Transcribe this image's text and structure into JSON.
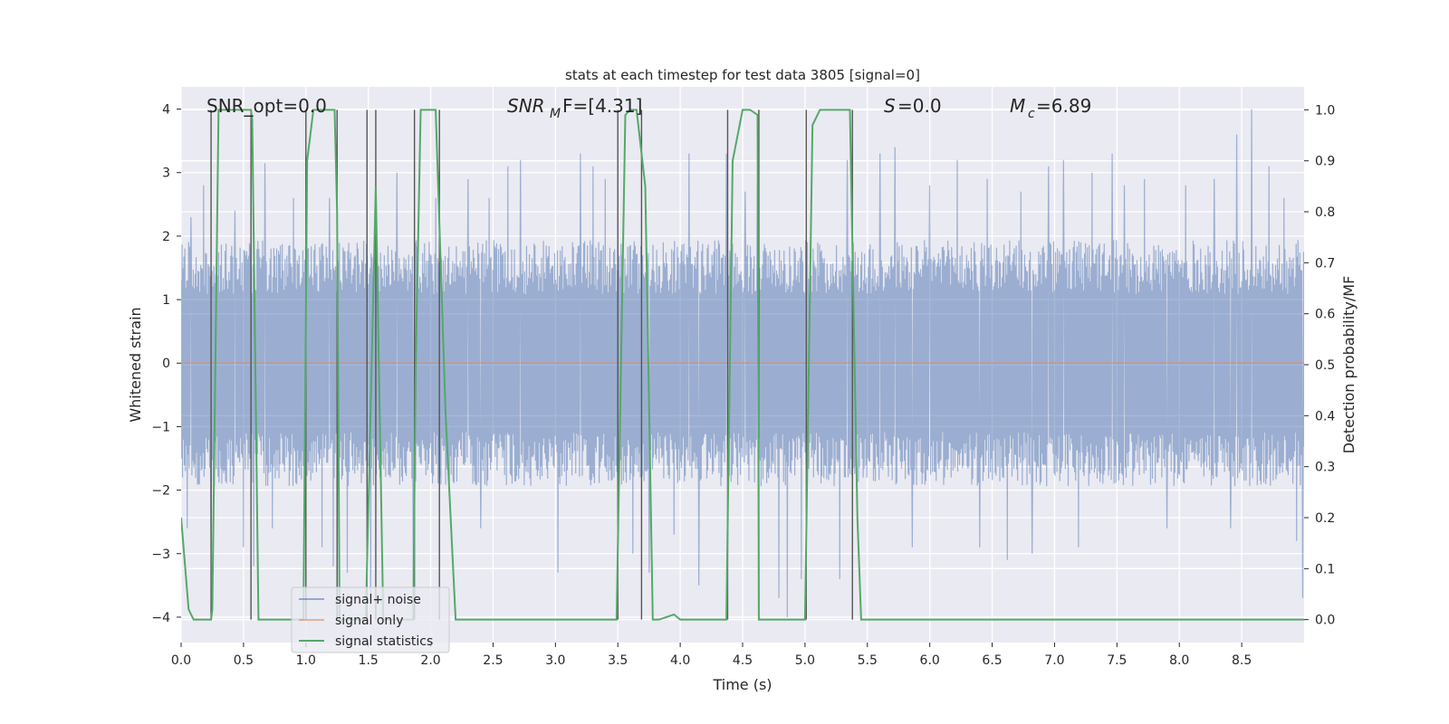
{
  "chart_data": {
    "type": "line",
    "title": "stats at each timestep for test data 3805 [signal=0]",
    "xlabel": "Time (s)",
    "ylabel": "Whitened strain",
    "y2label": "Detection probability/MF",
    "xlim": [
      0,
      9.0
    ],
    "ylim": [
      -4.4,
      4.35
    ],
    "y2lim": [
      -0.045,
      1.045
    ],
    "xticks": [
      0.0,
      0.5,
      1.0,
      1.5,
      2.0,
      2.5,
      3.0,
      3.5,
      4.0,
      4.5,
      5.0,
      5.5,
      6.0,
      6.5,
      7.0,
      7.5,
      8.0,
      8.5
    ],
    "yticks": [
      -4,
      -3,
      -2,
      -1,
      0,
      1,
      2,
      3,
      4
    ],
    "y2ticks": [
      0.0,
      0.1,
      0.2,
      0.3,
      0.4,
      0.5,
      0.6,
      0.7,
      0.8,
      0.9,
      1.0
    ],
    "grid": true,
    "legend_position": "lower-left",
    "annotations": {
      "snr_opt": "SNR_opt=0.0",
      "snr_mf_main": "SNR",
      "snr_mf_sub": "M",
      "snr_mf_rest": "F=[4.31]",
      "s_main": "S",
      "s_rest": "=0.0",
      "mc_main": "M",
      "mc_sub": "c",
      "mc_rest": "=6.89"
    },
    "series": [
      {
        "name": "signal+ noise",
        "color": "#4c72b0",
        "kind": "strain",
        "envelope_typical": 1.55,
        "spikes": [
          {
            "t": 0.05,
            "v": -2.6
          },
          {
            "t": 0.08,
            "v": 2.3
          },
          {
            "t": 0.18,
            "v": 2.8
          },
          {
            "t": 0.24,
            "v": -2.9
          },
          {
            "t": 0.43,
            "v": 2.4
          },
          {
            "t": 0.5,
            "v": -2.9
          },
          {
            "t": 0.58,
            "v": -3.2
          },
          {
            "t": 0.67,
            "v": 3.15
          },
          {
            "t": 0.73,
            "v": -2.6
          },
          {
            "t": 0.9,
            "v": 2.6
          },
          {
            "t": 1.13,
            "v": -2.9
          },
          {
            "t": 1.19,
            "v": 2.6
          },
          {
            "t": 1.22,
            "v": -3.2
          },
          {
            "t": 1.33,
            "v": -3.3
          },
          {
            "t": 1.52,
            "v": -3.7
          },
          {
            "t": 1.73,
            "v": 3.0
          },
          {
            "t": 1.86,
            "v": -3.4
          },
          {
            "t": 2.04,
            "v": 2.6
          },
          {
            "t": 2.3,
            "v": 2.9
          },
          {
            "t": 2.4,
            "v": -2.6
          },
          {
            "t": 2.47,
            "v": 2.6
          },
          {
            "t": 2.62,
            "v": 3.1
          },
          {
            "t": 2.72,
            "v": 3.2
          },
          {
            "t": 3.02,
            "v": -3.3
          },
          {
            "t": 3.2,
            "v": 3.3
          },
          {
            "t": 3.3,
            "v": 3.1
          },
          {
            "t": 3.4,
            "v": 2.9
          },
          {
            "t": 3.62,
            "v": -3.0
          },
          {
            "t": 3.75,
            "v": -3.3
          },
          {
            "t": 3.95,
            "v": -2.7
          },
          {
            "t": 4.07,
            "v": 3.3
          },
          {
            "t": 4.15,
            "v": -3.5
          },
          {
            "t": 4.37,
            "v": 3.3
          },
          {
            "t": 4.52,
            "v": 2.7
          },
          {
            "t": 4.62,
            "v": 2.8
          },
          {
            "t": 4.79,
            "v": -3.7
          },
          {
            "t": 4.86,
            "v": -4.0
          },
          {
            "t": 4.97,
            "v": -3.4
          },
          {
            "t": 5.28,
            "v": -3.4
          },
          {
            "t": 5.34,
            "v": 3.2
          },
          {
            "t": 5.6,
            "v": 3.3
          },
          {
            "t": 5.72,
            "v": 3.4
          },
          {
            "t": 5.86,
            "v": -2.9
          },
          {
            "t": 6.0,
            "v": 2.8
          },
          {
            "t": 6.22,
            "v": 3.2
          },
          {
            "t": 6.4,
            "v": -2.9
          },
          {
            "t": 6.46,
            "v": 2.9
          },
          {
            "t": 6.62,
            "v": -3.1
          },
          {
            "t": 6.73,
            "v": 2.7
          },
          {
            "t": 6.82,
            "v": -3.0
          },
          {
            "t": 6.95,
            "v": 3.1
          },
          {
            "t": 7.07,
            "v": 3.2
          },
          {
            "t": 7.19,
            "v": -2.9
          },
          {
            "t": 7.3,
            "v": 3.0
          },
          {
            "t": 7.46,
            "v": 3.3
          },
          {
            "t": 7.56,
            "v": 2.8
          },
          {
            "t": 7.72,
            "v": 2.9
          },
          {
            "t": 7.9,
            "v": -2.6
          },
          {
            "t": 8.05,
            "v": 2.8
          },
          {
            "t": 8.28,
            "v": 2.9
          },
          {
            "t": 8.41,
            "v": -2.6
          },
          {
            "t": 8.46,
            "v": 3.6
          },
          {
            "t": 8.58,
            "v": 4.0
          },
          {
            "t": 8.72,
            "v": 3.1
          },
          {
            "t": 8.84,
            "v": 2.6
          },
          {
            "t": 8.94,
            "v": -2.8
          },
          {
            "t": 8.99,
            "v": -3.7
          }
        ]
      },
      {
        "name": "signal only",
        "color": "#dd8452",
        "x": [
          0.0,
          9.0
        ],
        "y": [
          0.0,
          0.0
        ]
      },
      {
        "name": "signal statistics",
        "color": "#55a868",
        "axis": "right",
        "x": [
          0.0,
          0.06,
          0.1,
          0.24,
          0.25,
          0.3,
          0.56,
          0.57,
          0.62,
          0.68,
          0.98,
          1.01,
          1.06,
          1.08,
          1.23,
          1.25,
          1.27,
          1.48,
          1.56,
          1.62,
          1.86,
          1.88,
          1.92,
          2.04,
          2.12,
          2.2,
          3.49,
          3.56,
          3.6,
          3.65,
          3.72,
          3.78,
          3.83,
          3.95,
          4.0,
          4.05,
          4.12,
          4.37,
          4.42,
          4.5,
          4.56,
          4.62,
          4.63,
          4.66,
          5.0,
          5.06,
          5.12,
          5.36,
          5.42,
          5.45,
          9.0
        ],
        "y": [
          0.2,
          0.02,
          0.0,
          0.0,
          0.02,
          1.0,
          1.0,
          0.98,
          0.0,
          0.0,
          0.0,
          0.9,
          1.0,
          1.0,
          1.0,
          0.8,
          0.0,
          0.0,
          0.85,
          0.0,
          0.0,
          0.5,
          1.0,
          1.0,
          0.4,
          0.0,
          0.0,
          0.99,
          1.0,
          1.0,
          0.85,
          0.0,
          0.0,
          0.01,
          0.0,
          0.0,
          0.0,
          0.0,
          0.9,
          1.0,
          1.0,
          0.99,
          0.0,
          0.0,
          0.0,
          0.97,
          1.0,
          1.0,
          0.2,
          0.0,
          0.0
        ]
      }
    ],
    "vlines": [
      0.24,
      0.56,
      1.0,
      1.25,
      1.49,
      1.56,
      1.87,
      2.07,
      3.5,
      3.69,
      4.38,
      4.63,
      5.01,
      5.38
    ]
  }
}
